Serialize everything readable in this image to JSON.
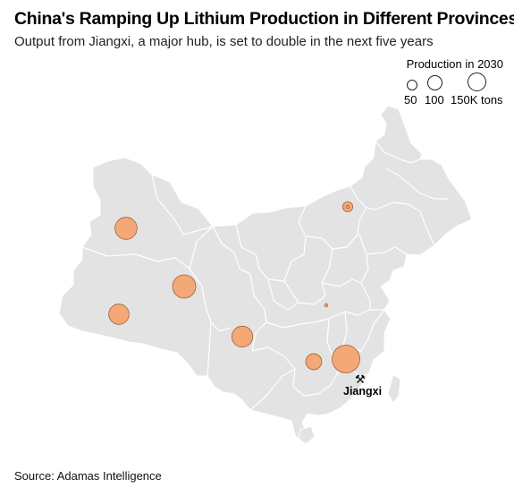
{
  "header": {
    "title": "China's Ramping Up Lithium Production in Different Provinces",
    "subtitle": "Output from Jiangxi, a major hub, is set to double in the next five years"
  },
  "legend": {
    "title": "Production in 2030",
    "items": [
      "50",
      "100",
      "150K tons"
    ]
  },
  "hub": {
    "label": "Jiangxi",
    "icon": "pickaxe-hammer-icon"
  },
  "footer": {
    "source": "Source: Adamas Intelligence"
  },
  "colors": {
    "land": "#e3e3e3",
    "border": "#ffffff",
    "bubble_fill": "#f4a878",
    "bubble_stroke": "#a0603a"
  },
  "chart_data": {
    "type": "bubble-map",
    "title": "China's Ramping Up Lithium Production in Different Provinces",
    "subtitle": "Output from Jiangxi, a major hub, is set to double in the next five years",
    "size_legend_k_tons": [
      50,
      100,
      150
    ],
    "points_k_tons": [
      {
        "label": "Jiangxi",
        "value": 150
      },
      {
        "value": 105
      },
      {
        "value": 95
      },
      {
        "value": 85
      },
      {
        "value": 80
      },
      {
        "value": 50
      },
      {
        "value": 20
      },
      {
        "value": 2
      },
      {
        "value": 2
      }
    ]
  }
}
